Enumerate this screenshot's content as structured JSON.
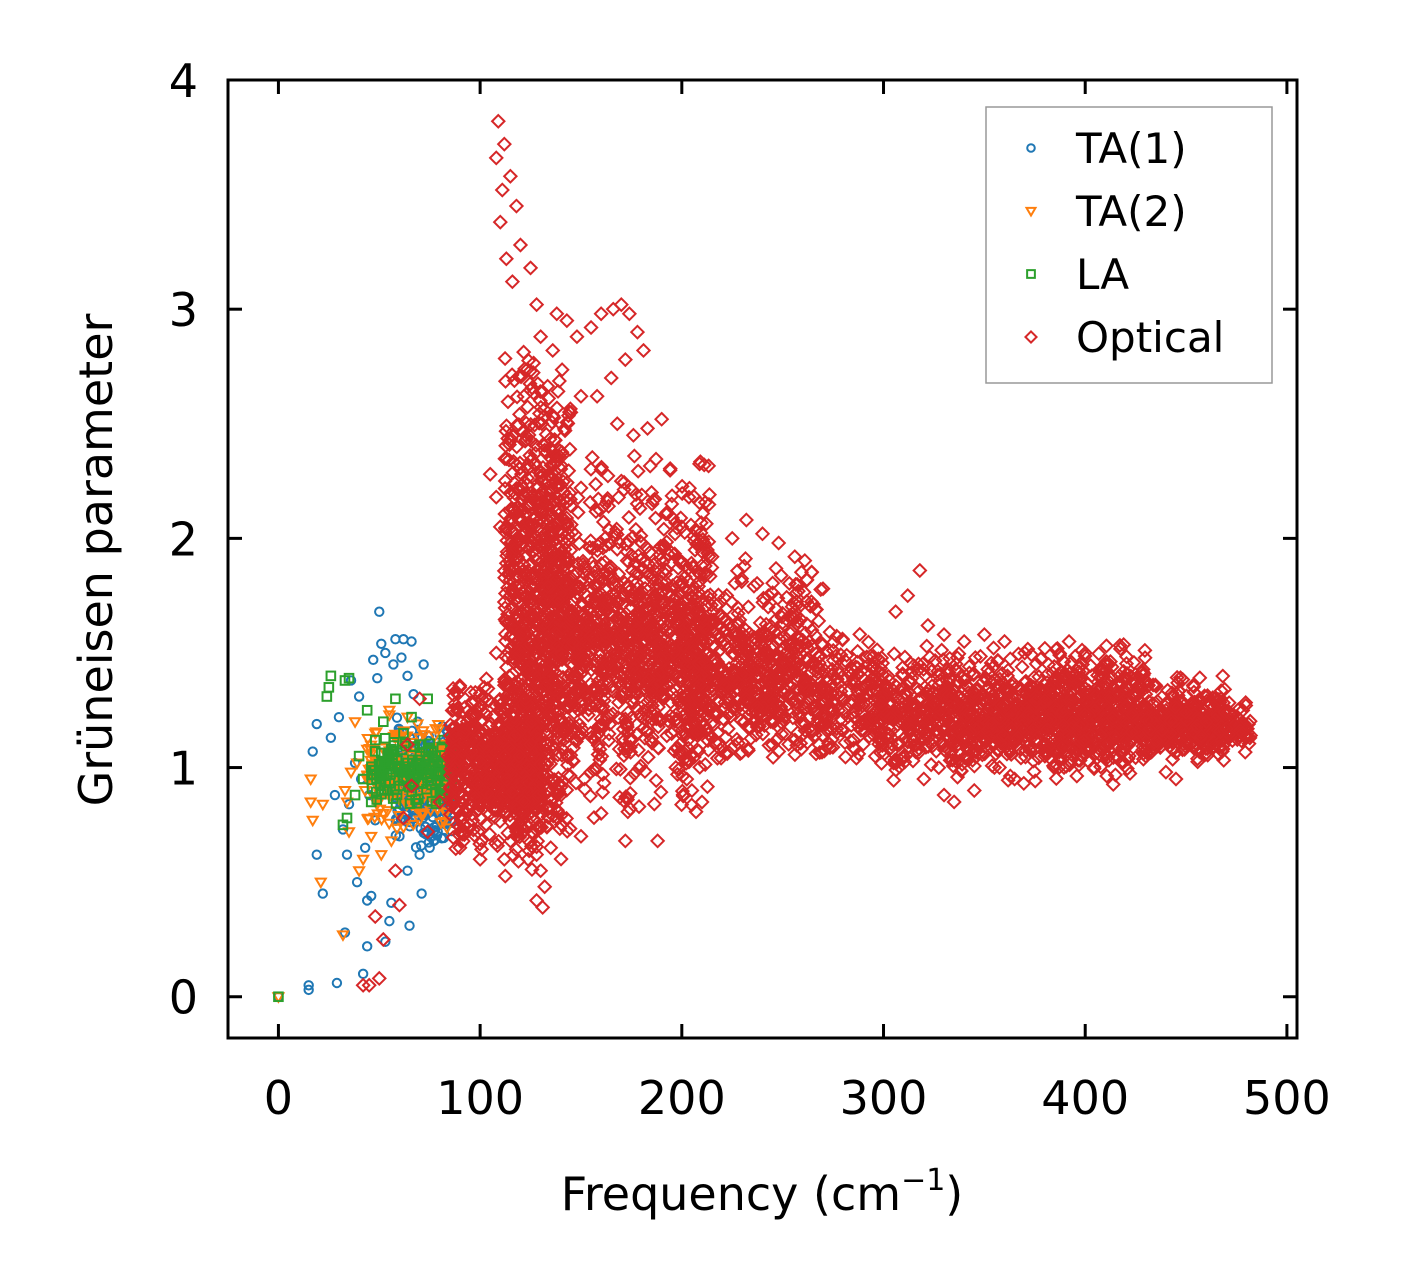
{
  "chart_data": {
    "type": "scatter",
    "xlabel_text": "Frequency (cm",
    "xlabel_sup": "−1",
    "xlabel_close": ")",
    "ylabel": "Grüneisen parameter",
    "xlim": [
      -25,
      505
    ],
    "ylim": [
      -0.18,
      4.0
    ],
    "xticks": [
      0,
      100,
      200,
      300,
      400,
      500
    ],
    "yticks": [
      0,
      1,
      2,
      3,
      4
    ],
    "xtick_labels": [
      "0",
      "100",
      "200",
      "300",
      "400",
      "500"
    ],
    "ytick_labels": [
      "0",
      "1",
      "2",
      "3",
      "4"
    ],
    "legend_position": "top-right",
    "series": [
      {
        "name": "TA(1)",
        "marker": "circle",
        "color": "#1f77b4",
        "points": [
          [
            0,
            0
          ],
          [
            15,
            0.03
          ],
          [
            15,
            0.05
          ],
          [
            29,
            0.06
          ],
          [
            33,
            0.28
          ],
          [
            22,
            0.45
          ],
          [
            19,
            0.62
          ],
          [
            28,
            0.88
          ],
          [
            17,
            1.07
          ],
          [
            26,
            1.13
          ],
          [
            19,
            1.19
          ],
          [
            30,
            1.22
          ],
          [
            32,
            0.73
          ],
          [
            34,
            0.62
          ],
          [
            35,
            0.84
          ],
          [
            40,
            1.31
          ],
          [
            42,
            0.1
          ],
          [
            44,
            0.22
          ],
          [
            44,
            0.42
          ],
          [
            43,
            0.65
          ],
          [
            46,
            0.44
          ],
          [
            47,
            1.47
          ],
          [
            49,
            1.39
          ],
          [
            50,
            1.68
          ],
          [
            51,
            1.54
          ],
          [
            53,
            1.5
          ],
          [
            53,
            0.24
          ],
          [
            55,
            0.33
          ],
          [
            56,
            0.41
          ],
          [
            57,
            1.45
          ],
          [
            58,
            1.56
          ],
          [
            61,
            1.48
          ],
          [
            62,
            1.56
          ],
          [
            64,
            1.4
          ],
          [
            65,
            0.31
          ],
          [
            66,
            1.55
          ],
          [
            67,
            1.32
          ],
          [
            69,
            1.2
          ],
          [
            70,
            0.62
          ],
          [
            71,
            0.45
          ],
          [
            72,
            1.45
          ],
          [
            74,
            0.8
          ],
          [
            75,
            0.65
          ],
          [
            78,
            0.92
          ],
          [
            79,
            0.72
          ],
          [
            80,
            0.85
          ],
          [
            82,
            0.78
          ],
          [
            84,
            0.88
          ],
          [
            38,
            1.02
          ],
          [
            41,
            0.95
          ],
          [
            45,
            0.88
          ],
          [
            48,
            0.77
          ],
          [
            52,
            0.92
          ],
          [
            55,
            1.05
          ],
          [
            58,
            0.87
          ],
          [
            60,
            0.82
          ],
          [
            63,
            0.94
          ],
          [
            66,
            1.02
          ],
          [
            68,
            0.78
          ],
          [
            71,
            0.88
          ],
          [
            73,
            0.71
          ],
          [
            76,
            0.82
          ],
          [
            36,
            1.38
          ],
          [
            39,
            0.5
          ],
          [
            60,
            0.7
          ],
          [
            64,
            0.55
          ],
          [
            68,
            0.98
          ],
          [
            77,
            0.68
          ]
        ],
        "cloud": {
          "x": [
            58,
            86
          ],
          "y": [
            0.62,
            1.22
          ],
          "count": 260
        }
      },
      {
        "name": "TA(2)",
        "marker": "triangle",
        "color": "#ff7f0e",
        "points": [
          [
            0,
            0
          ],
          [
            16,
            0.95
          ],
          [
            16,
            0.85
          ],
          [
            17,
            0.77
          ],
          [
            21,
            0.5
          ],
          [
            22,
            0.84
          ],
          [
            32,
            0.27
          ],
          [
            33,
            0.9
          ],
          [
            34,
            0.85
          ],
          [
            36,
            0.98
          ],
          [
            38,
            1.2
          ],
          [
            40,
            0.55
          ],
          [
            42,
            0.6
          ],
          [
            44,
            1.08
          ],
          [
            46,
            0.7
          ],
          [
            48,
            1.15
          ],
          [
            50,
            0.92
          ],
          [
            52,
            0.8
          ],
          [
            54,
            1.05
          ],
          [
            56,
            0.68
          ],
          [
            58,
            0.99
          ],
          [
            60,
            1.12
          ],
          [
            62,
            0.74
          ],
          [
            64,
            1.22
          ],
          [
            66,
            0.87
          ],
          [
            68,
            0.95
          ],
          [
            70,
            1.13
          ],
          [
            72,
            0.8
          ],
          [
            74,
            1.07
          ],
          [
            76,
            0.9
          ],
          [
            78,
            1.17
          ],
          [
            80,
            1.0
          ],
          [
            82,
            1.1
          ],
          [
            35,
            0.72
          ],
          [
            39,
            1.02
          ],
          [
            43,
            0.9
          ],
          [
            47,
            0.97
          ],
          [
            51,
            0.62
          ],
          [
            55,
            1.25
          ]
        ],
        "cloud": {
          "x": [
            44,
            84
          ],
          "y": [
            0.72,
            1.24
          ],
          "count": 200
        }
      },
      {
        "name": "LA",
        "marker": "square",
        "color": "#2ca02c",
        "points": [
          [
            0,
            0
          ],
          [
            25,
            1.35
          ],
          [
            26,
            1.4
          ],
          [
            24,
            1.31
          ],
          [
            33,
            1.38
          ],
          [
            35,
            1.39
          ],
          [
            32,
            0.75
          ],
          [
            34,
            0.78
          ],
          [
            38,
            0.88
          ],
          [
            40,
            1.05
          ],
          [
            42,
            0.95
          ],
          [
            44,
            1.25
          ],
          [
            46,
            0.85
          ],
          [
            48,
            1.12
          ],
          [
            50,
            0.98
          ],
          [
            52,
            1.2
          ],
          [
            54,
            0.9
          ],
          [
            56,
            1.08
          ],
          [
            58,
            1.3
          ],
          [
            60,
            0.92
          ],
          [
            62,
            1.15
          ],
          [
            64,
            1.02
          ],
          [
            66,
            1.22
          ],
          [
            68,
            0.86
          ],
          [
            70,
            1.1
          ],
          [
            72,
            1.0
          ],
          [
            74,
            1.3
          ],
          [
            76,
            0.94
          ],
          [
            78,
            1.05
          ],
          [
            80,
            0.9
          ],
          [
            82,
            1.12
          ],
          [
            84,
            0.98
          ],
          [
            86,
            1.08
          ],
          [
            88,
            0.95
          ]
        ],
        "cloud": {
          "x": [
            46,
            88
          ],
          "y": [
            0.82,
            1.15
          ],
          "count": 150
        }
      },
      {
        "name": "Optical",
        "marker": "diamond",
        "color": "#d62728",
        "points": [
          [
            109,
            3.82
          ],
          [
            112,
            3.72
          ],
          [
            108,
            3.66
          ],
          [
            115,
            3.58
          ],
          [
            111,
            3.52
          ],
          [
            118,
            3.45
          ],
          [
            110,
            3.38
          ],
          [
            120,
            3.28
          ],
          [
            113,
            3.22
          ],
          [
            125,
            3.18
          ],
          [
            116,
            3.12
          ],
          [
            128,
            3.02
          ],
          [
            138,
            2.98
          ],
          [
            143,
            2.95
          ],
          [
            130,
            2.88
          ],
          [
            136,
            2.82
          ],
          [
            148,
            2.88
          ],
          [
            155,
            2.92
          ],
          [
            160,
            2.98
          ],
          [
            166,
            3.0
          ],
          [
            170,
            3.02
          ],
          [
            174,
            2.98
          ],
          [
            178,
            2.9
          ],
          [
            181,
            2.82
          ],
          [
            172,
            2.78
          ],
          [
            165,
            2.7
          ],
          [
            158,
            2.62
          ],
          [
            150,
            2.62
          ],
          [
            145,
            2.55
          ],
          [
            168,
            2.5
          ],
          [
            176,
            2.45
          ],
          [
            183,
            2.48
          ],
          [
            190,
            2.52
          ],
          [
            105,
            2.28
          ],
          [
            108,
            2.18
          ],
          [
            110,
            2.05
          ],
          [
            140,
            2.32
          ],
          [
            150,
            2.22
          ],
          [
            160,
            2.3
          ],
          [
            170,
            2.25
          ],
          [
            185,
            2.2
          ],
          [
            195,
            2.15
          ],
          [
            200,
            2.05
          ],
          [
            208,
            1.98
          ],
          [
            215,
            1.92
          ],
          [
            225,
            2.0
          ],
          [
            232,
            2.08
          ],
          [
            240,
            2.02
          ],
          [
            248,
            1.98
          ],
          [
            256,
            1.92
          ],
          [
            262,
            1.82
          ],
          [
            270,
            1.78
          ],
          [
            258,
            1.7
          ],
          [
            318,
            1.86
          ],
          [
            312,
            1.75
          ],
          [
            306,
            1.68
          ],
          [
            322,
            1.62
          ],
          [
            330,
            1.58
          ],
          [
            340,
            1.55
          ],
          [
            350,
            1.58
          ],
          [
            360,
            1.55
          ],
          [
            370,
            1.5
          ],
          [
            380,
            1.52
          ],
          [
            392,
            1.55
          ],
          [
            400,
            1.5
          ],
          [
            410,
            1.45
          ],
          [
            420,
            1.38
          ],
          [
            430,
            1.32
          ],
          [
            440,
            1.28
          ],
          [
            450,
            1.24
          ],
          [
            460,
            1.2
          ],
          [
            470,
            1.17
          ],
          [
            478,
            1.15
          ],
          [
            482,
            1.14
          ],
          [
            122,
            0.85
          ],
          [
            125,
            0.75
          ],
          [
            128,
            0.62
          ],
          [
            130,
            0.55
          ],
          [
            132,
            0.48
          ],
          [
            128,
            0.42
          ],
          [
            131,
            0.39
          ],
          [
            135,
            0.65
          ],
          [
            118,
            0.7
          ],
          [
            112,
            0.6
          ],
          [
            150,
            0.7
          ],
          [
            160,
            0.8
          ],
          [
            172,
            0.68
          ],
          [
            188,
            0.68
          ],
          [
            205,
            0.9
          ],
          [
            245,
            1.1
          ],
          [
            280,
            1.3
          ],
          [
            295,
            1.25
          ],
          [
            300,
            1.12
          ],
          [
            310,
            1.05
          ],
          [
            320,
            0.95
          ],
          [
            330,
            0.88
          ],
          [
            335,
            0.85
          ],
          [
            345,
            0.9
          ],
          [
            355,
            1.0
          ],
          [
            365,
            0.95
          ],
          [
            380,
            1.05
          ],
          [
            395,
            1.08
          ],
          [
            410,
            1.05
          ],
          [
            420,
            1.1
          ],
          [
            430,
            1.05
          ],
          [
            440,
            0.98
          ],
          [
            445,
            0.95
          ],
          [
            50,
            0.08
          ],
          [
            45,
            0.05
          ],
          [
            42,
            0.05
          ],
          [
            48,
            0.35
          ],
          [
            52,
            0.25
          ],
          [
            60,
            0.4
          ],
          [
            58,
            0.55
          ],
          [
            62,
            0.78
          ],
          [
            66,
            0.92
          ],
          [
            64,
            1.1
          ],
          [
            70,
            1.3
          ],
          [
            74,
            0.72
          ],
          [
            80,
            0.85
          ],
          [
            84,
            1.05
          ],
          [
            88,
            0.95
          ],
          [
            90,
            0.65
          ],
          [
            92,
            1.15
          ],
          [
            95,
            0.75
          ],
          [
            98,
            1.25
          ],
          [
            100,
            0.6
          ],
          [
            102,
            1.35
          ],
          [
            105,
            0.95
          ],
          [
            108,
            1.5
          ],
          [
            110,
            1.0
          ]
        ],
        "clouds": [
          {
            "x": [
              85,
              130
            ],
            "y": [
              0.62,
              1.4
            ],
            "count": 700
          },
          {
            "x": [
              112,
              145
            ],
            "y": [
              0.5,
              2.9
            ],
            "count": 900
          },
          {
            "x": [
              130,
              215
            ],
            "y": [
              0.72,
              2.4
            ],
            "count": 900
          },
          {
            "x": [
              145,
              270
            ],
            "y": [
              1.05,
              1.95
            ],
            "count": 700
          },
          {
            "x": [
              200,
              300
            ],
            "y": [
              1.0,
              1.62
            ],
            "count": 500
          },
          {
            "x": [
              295,
              430
            ],
            "y": [
              0.92,
              1.55
            ],
            "count": 900
          },
          {
            "x": [
              330,
              470
            ],
            "y": [
              1.0,
              1.42
            ],
            "count": 600
          },
          {
            "x": [
              430,
              482
            ],
            "y": [
              1.05,
              1.3
            ],
            "count": 250
          }
        ]
      }
    ]
  }
}
